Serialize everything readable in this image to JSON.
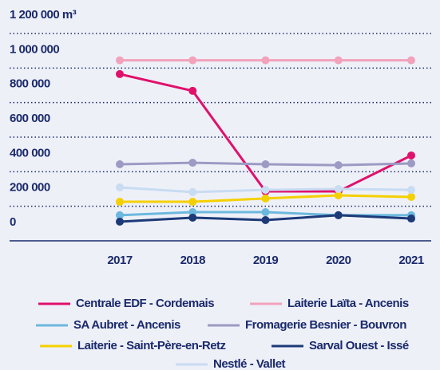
{
  "chart_data": {
    "type": "line",
    "categories": [
      "2017",
      "2018",
      "2019",
      "2020",
      "2021"
    ],
    "ylim": [
      0,
      1200000
    ],
    "yticks": [
      {
        "value": 0,
        "label": "0"
      },
      {
        "value": 200000,
        "label": "200 000"
      },
      {
        "value": 400000,
        "label": "400 000"
      },
      {
        "value": 600000,
        "label": "600 000"
      },
      {
        "value": 800000,
        "label": "800 000"
      },
      {
        "value": 1000000,
        "label": "1 000 000"
      },
      {
        "value": 1200000,
        "label": "1 200 000 m³"
      }
    ],
    "grid": true,
    "series": [
      {
        "name": "Centrale EDF - Cordemais",
        "color": "#e0106b",
        "values": [
          965000,
          868000,
          286000,
          286000,
          494000
        ]
      },
      {
        "name": "Laiterie Laïta - Ancenis",
        "color": "#f2a2bb",
        "values": [
          1045000,
          1045000,
          1045000,
          1045000,
          1045000
        ]
      },
      {
        "name": "SA Aubret - Ancenis",
        "color": "#6cb8de",
        "values": [
          148000,
          166000,
          166000,
          148000,
          148000
        ]
      },
      {
        "name": "Fromagerie Besnier - Bouvron",
        "color": "#9b9bc4",
        "values": [
          443000,
          452000,
          443000,
          438000,
          448000
        ]
      },
      {
        "name": "Laiterie - Saint-Père-en-Retz",
        "color": "#f5d000",
        "values": [
          226000,
          226000,
          245000,
          263000,
          254000
        ]
      },
      {
        "name": "Sarval Ouest - Issé",
        "color": "#1c3a78",
        "values": [
          111000,
          134000,
          120000,
          148000,
          129000
        ]
      },
      {
        "name": "Nestlé - Vallet",
        "color": "#c8dcf2",
        "values": [
          309000,
          282000,
          295000,
          300000,
          295000
        ]
      }
    ]
  }
}
